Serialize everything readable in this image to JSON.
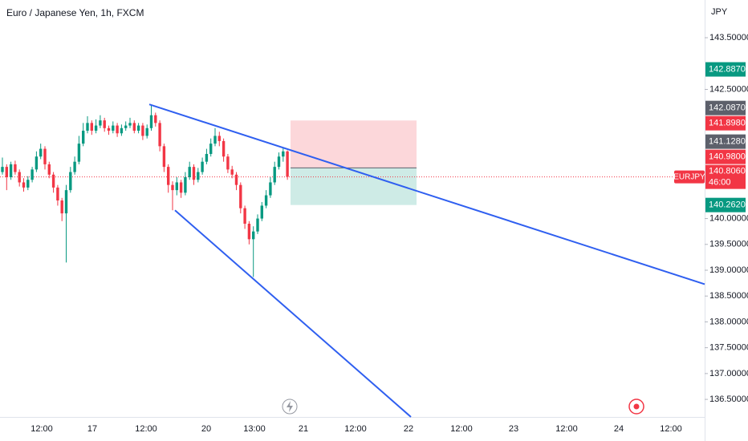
{
  "chart_data": {
    "type": "candlestick",
    "title": "Euro / Japanese Yen, 1h, FXCM",
    "currency": "JPY",
    "symbol": "EURJPY",
    "x_labels": [
      "12:00",
      "17",
      "12:00",
      "20",
      "13:00",
      "21",
      "12:00",
      "22",
      "12:00",
      "23",
      "12:00",
      "24",
      "12:00"
    ],
    "open": [
      140.9,
      141.0,
      140.8,
      141.05,
      140.9,
      140.7,
      140.6,
      140.75,
      140.95,
      141.2,
      141.35,
      141.05,
      140.85,
      140.6,
      140.35,
      140.1,
      140.55,
      140.9,
      141.1,
      141.45,
      141.7,
      141.85,
      141.7,
      141.8,
      141.9,
      141.75,
      141.7,
      141.8,
      141.65,
      141.75,
      141.8,
      141.85,
      141.7,
      141.8,
      141.6,
      141.75,
      142.0,
      141.85,
      141.4,
      141.0,
      140.65,
      140.55,
      140.7,
      140.5,
      140.8,
      141.0,
      140.75,
      140.9,
      141.1,
      141.25,
      141.45,
      141.6,
      141.5,
      141.2,
      140.95,
      140.85,
      140.65,
      140.2,
      139.9,
      139.6,
      139.75,
      140.0,
      140.25,
      140.45,
      140.7,
      141.0,
      141.2,
      141.3
    ],
    "high": [
      141.18,
      141.05,
      141.1,
      141.12,
      140.95,
      140.78,
      140.82,
      141.0,
      141.3,
      141.45,
      141.4,
      141.1,
      140.9,
      140.65,
      140.4,
      140.65,
      141.0,
      141.2,
      141.6,
      141.85,
      141.98,
      141.9,
      141.92,
      142.0,
      141.95,
      141.8,
      141.88,
      141.85,
      141.82,
      141.88,
      141.95,
      141.9,
      141.85,
      141.85,
      141.82,
      142.2,
      142.05,
      141.9,
      141.45,
      141.05,
      140.72,
      140.8,
      140.75,
      140.9,
      141.1,
      141.05,
      140.98,
      141.18,
      141.35,
      141.55,
      141.75,
      141.68,
      141.55,
      141.25,
      141.02,
      140.9,
      140.7,
      140.25,
      139.95,
      139.85,
      140.08,
      140.32,
      140.55,
      140.8,
      141.1,
      141.28,
      141.36,
      141.32
    ],
    "low": [
      140.85,
      140.55,
      140.75,
      140.85,
      140.62,
      140.52,
      140.55,
      140.7,
      140.9,
      141.15,
      140.95,
      140.78,
      140.5,
      140.25,
      139.95,
      139.15,
      140.5,
      140.85,
      141.05,
      141.4,
      141.65,
      141.62,
      141.65,
      141.75,
      141.68,
      141.62,
      141.65,
      141.58,
      141.6,
      141.7,
      141.75,
      141.65,
      141.65,
      141.52,
      141.55,
      141.7,
      141.78,
      141.3,
      140.9,
      140.5,
      140.16,
      140.45,
      140.4,
      140.45,
      140.75,
      140.65,
      140.7,
      140.85,
      141.05,
      141.2,
      141.4,
      141.4,
      141.1,
      140.88,
      140.78,
      140.55,
      140.1,
      139.8,
      139.5,
      138.87,
      139.7,
      139.95,
      140.2,
      140.4,
      140.65,
      140.95,
      141.1,
      140.75
    ],
    "close": [
      141.0,
      140.8,
      141.05,
      140.9,
      140.7,
      140.6,
      140.75,
      140.95,
      141.2,
      141.35,
      141.05,
      140.85,
      140.6,
      140.35,
      140.1,
      140.55,
      140.9,
      141.1,
      141.45,
      141.7,
      141.85,
      141.7,
      141.8,
      141.9,
      141.75,
      141.7,
      141.8,
      141.65,
      141.75,
      141.8,
      141.85,
      141.7,
      141.8,
      141.6,
      141.75,
      142.0,
      141.85,
      141.4,
      141.0,
      140.65,
      140.55,
      140.7,
      140.5,
      140.8,
      141.0,
      140.75,
      140.9,
      141.1,
      141.25,
      141.45,
      141.6,
      141.5,
      141.2,
      140.95,
      140.85,
      140.65,
      140.2,
      139.9,
      139.6,
      139.75,
      140.0,
      140.25,
      140.45,
      140.7,
      141.0,
      141.2,
      141.3,
      140.81
    ],
    "up_color": "#089981",
    "down_color": "#f23645",
    "ylim": [
      136.16,
      144.23
    ],
    "yticks": [
      {
        "value": 143.5,
        "label": "143.50000"
      },
      {
        "value": 142.5,
        "label": "142.50000"
      },
      {
        "value": 140.0,
        "label": "140.00000"
      },
      {
        "value": 139.5,
        "label": "139.50000"
      },
      {
        "value": 139.0,
        "label": "139.00000"
      },
      {
        "value": 138.5,
        "label": "138.50000"
      },
      {
        "value": 138.0,
        "label": "138.00000"
      },
      {
        "value": 137.5,
        "label": "137.50000"
      },
      {
        "value": 137.0,
        "label": "137.00000"
      },
      {
        "value": 136.5,
        "label": "136.50000"
      }
    ],
    "trendlines": [
      {
        "start": 142.21,
        "end": 138.73,
        "color": "#2f5ff0"
      },
      {
        "start": 140.16,
        "end": 136.16,
        "color": "#2f5ff0"
      }
    ],
    "position": {
      "stop": 141.898,
      "entry": 140.98,
      "target": 140.262
    },
    "price_tags": [
      {
        "value": 142.887,
        "label": "142.88700",
        "color": "#089981"
      },
      {
        "value": 142.087,
        "label": "142.08700",
        "color": "#5d606b"
      },
      {
        "value": 141.898,
        "label": "141.89800",
        "color": "#f23645"
      },
      {
        "value": 141.128,
        "label": "141.12800",
        "color": "#5d606b"
      },
      {
        "value": 140.98,
        "label": "140.98000",
        "color": "#f23645"
      },
      {
        "value": 140.262,
        "label": "140.26200",
        "color": "#089981"
      }
    ],
    "last_price": {
      "value": 140.806,
      "label": "140.80600",
      "countdown": "46:00",
      "color": "#f23645"
    }
  }
}
